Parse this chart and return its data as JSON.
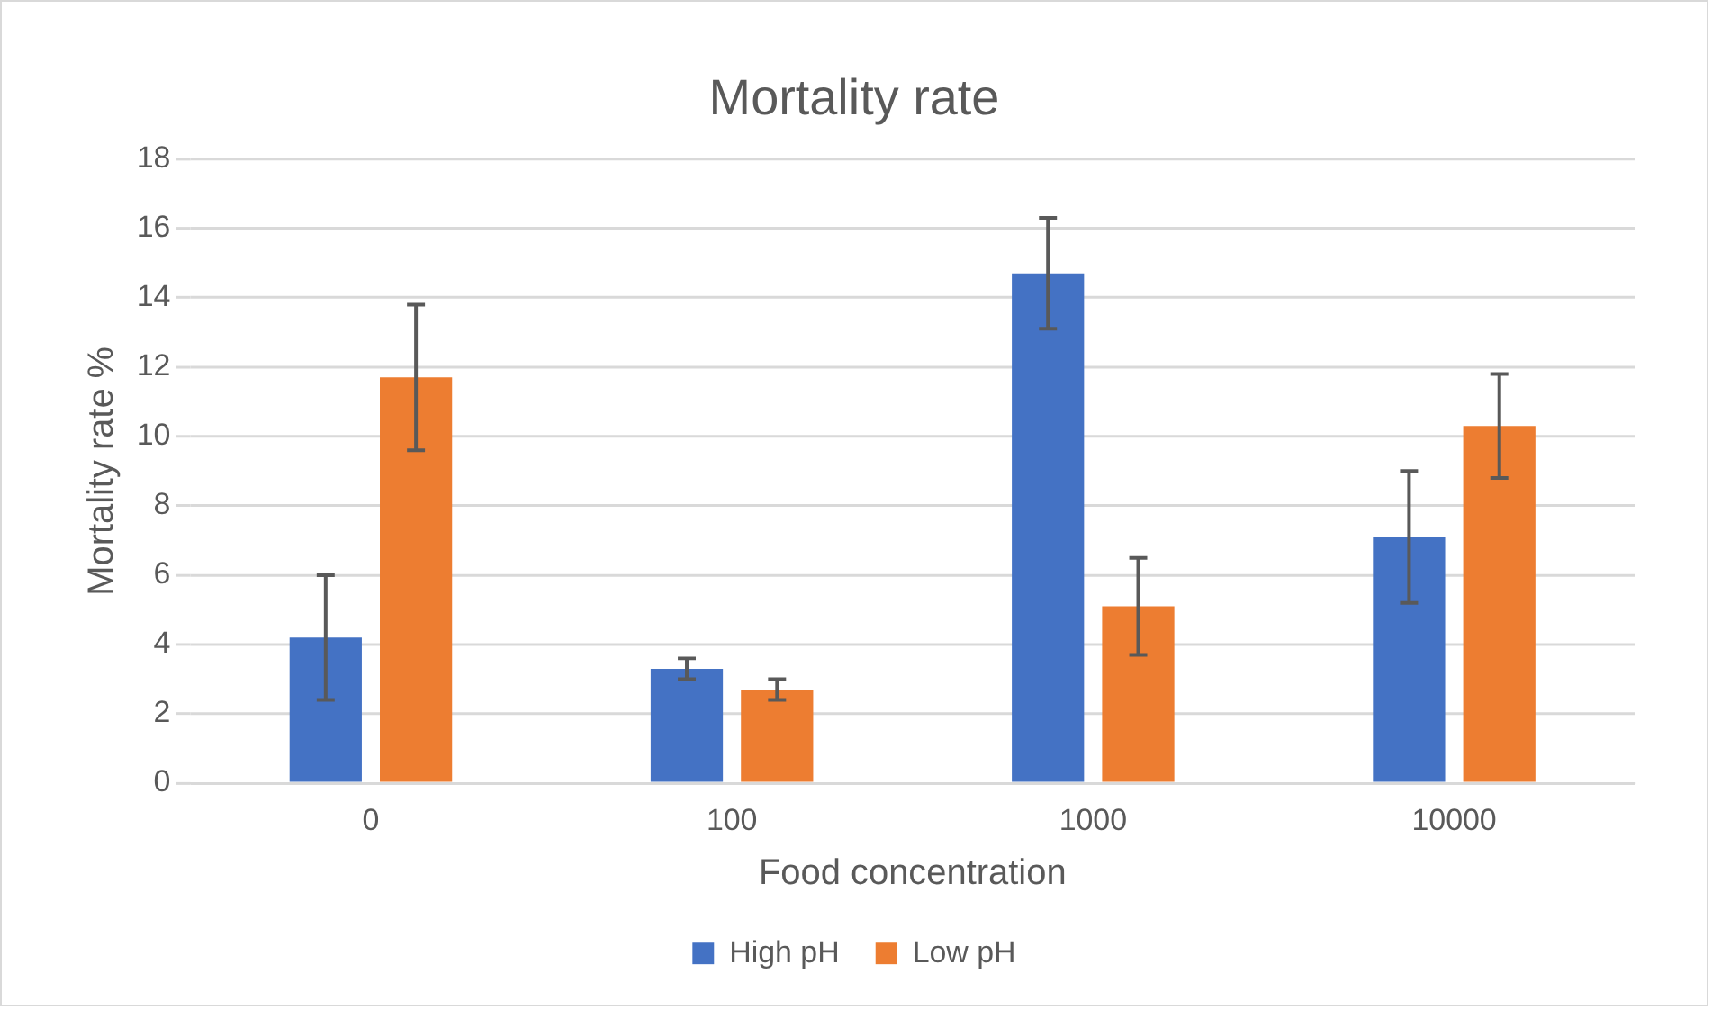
{
  "chart_data": {
    "type": "bar",
    "title": "Mortality rate",
    "xlabel": "Food concentration",
    "ylabel": "Mortality rate %",
    "categories": [
      "0",
      "100",
      "1000",
      "10000"
    ],
    "series": [
      {
        "name": "High pH",
        "color": "#4472c4",
        "values": [
          4.2,
          3.3,
          14.7,
          7.1
        ],
        "errors": [
          1.8,
          0.3,
          1.6,
          1.9
        ]
      },
      {
        "name": "Low pH",
        "color": "#ed7d31",
        "values": [
          11.7,
          2.7,
          5.1,
          10.3
        ],
        "errors": [
          2.1,
          0.3,
          1.4,
          1.5
        ]
      }
    ],
    "ylim": [
      0,
      18
    ],
    "yticks": [
      0,
      2,
      4,
      6,
      8,
      10,
      12,
      14,
      16,
      18
    ],
    "grid": "y",
    "legend": "bottom"
  }
}
